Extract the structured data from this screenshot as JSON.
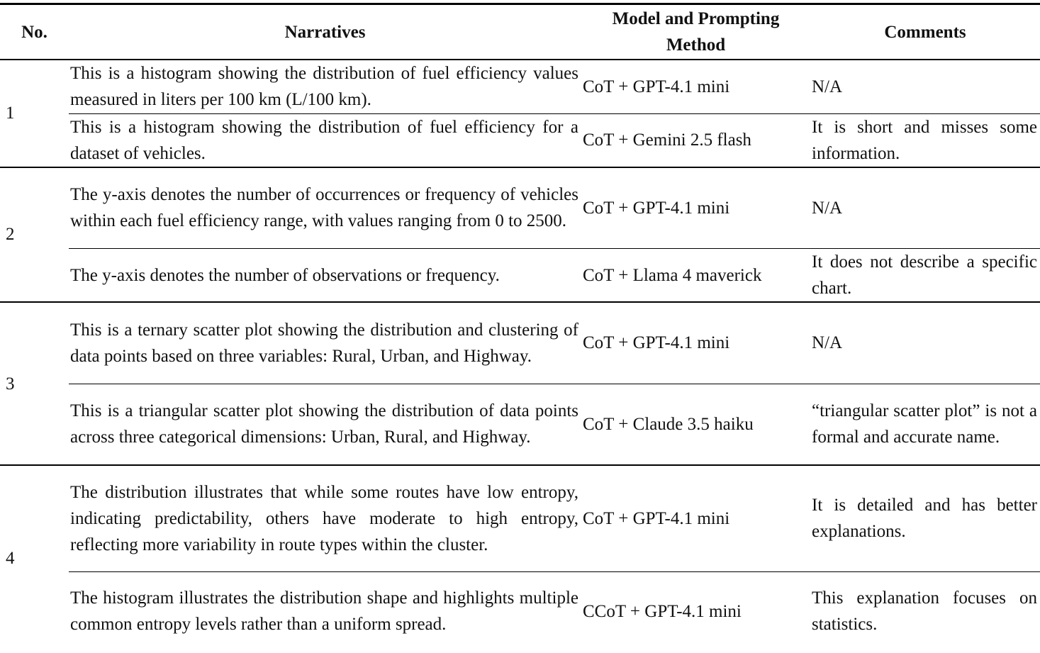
{
  "header": {
    "columns": [
      "No.",
      "Narratives",
      "Model and Prompting Method",
      "Comments"
    ]
  },
  "groups": [
    {
      "number": 1,
      "rows": [
        {
          "narrative": "This is a histogram showing the distribution of fuel efficiency values measured in liters per 100 km (L/100 km).",
          "model": "CoT + GPT-4.1 mini",
          "comment": "N/A"
        },
        {
          "narrative": "This is a histogram showing the distribution of fuel efficiency for a dataset of vehicles.",
          "model": "CoT + Gemini 2.5 flash",
          "comment": "It is short and misses some information."
        }
      ]
    },
    {
      "number": 2,
      "rows": [
        {
          "narrative": "The y-axis denotes the number of occurrences or frequency of vehicles within each fuel efficiency range, with values ranging from 0 to 2500.",
          "model": "CoT + GPT-4.1 mini",
          "comment": "N/A"
        },
        {
          "narrative": "The y-axis denotes the number of observations or frequency.",
          "model": "CoT + Llama 4 maverick",
          "comment": "It does not describe a specific chart."
        }
      ]
    },
    {
      "number": 3,
      "rows": [
        {
          "narrative": "This is a ternary scatter plot showing the distribution and clustering of data points based on three variables: Rural, Urban, and Highway.",
          "model": "CoT + GPT-4.1 mini",
          "comment": "N/A"
        },
        {
          "narrative": "This is a triangular scatter plot showing the distribution of data points across three categorical dimensions: Urban, Rural, and Highway.",
          "model": "CoT + Claude 3.5 haiku",
          "comment": "“triangular scatter plot” is not a formal and accurate name."
        }
      ]
    },
    {
      "number": 4,
      "rows": [
        {
          "narrative": "The distribution illustrates that while some routes have low entropy, indicating predictability, others have moderate to high entropy, reflecting more variability in route types within the cluster.",
          "model": "CoT + GPT-4.1 mini",
          "comment": "It is detailed and has better explanations."
        },
        {
          "narrative": "The histogram illustrates the distribution shape and highlights multiple common entropy levels rather than a uniform spread.",
          "model": "CCoT + GPT-4.1 mini",
          "comment": "This explanation focuses on statistics."
        }
      ]
    }
  ]
}
